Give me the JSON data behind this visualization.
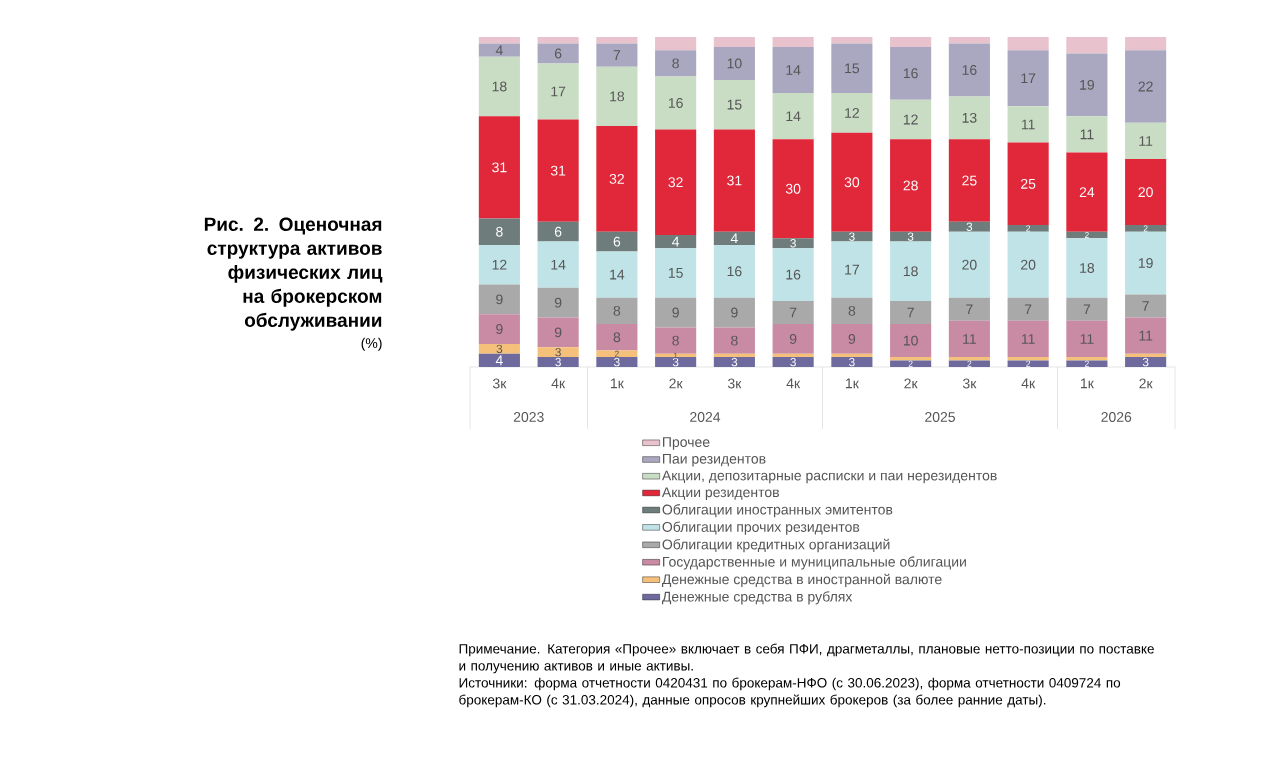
{
  "chart_data": {
    "type": "bar",
    "stacked": true,
    "title": "Рис. 2. Оценочная структура активов физических лиц на брокерском обслуживании",
    "subtitle": "(%)",
    "categories": [
      "3к",
      "4к",
      "1к",
      "2к",
      "3к",
      "4к",
      "1к",
      "2к",
      "3к",
      "4к",
      "1к",
      "2к"
    ],
    "ylim": [
      0,
      100
    ],
    "tick_labels": "x",
    "legend": "bottom",
    "series": [
      {
        "name": "Денежные средства в рублях",
        "color": "#6e6a9e",
        "values": [
          4,
          3,
          3,
          3,
          3,
          3,
          3,
          2,
          2,
          2,
          2,
          3
        ],
        "value_labels": [
          "4",
          "3",
          "3",
          "3",
          "3",
          "3",
          "3",
          "2",
          "2",
          "2",
          "2",
          "3"
        ]
      },
      {
        "name": "Денежные средства в иностранной валюте",
        "color": "#f5c07a",
        "values": [
          3,
          3,
          2,
          1,
          1,
          1,
          1,
          1,
          1,
          1,
          1,
          1
        ],
        "value_labels": [
          "3",
          "3",
          "2",
          "1",
          null,
          null,
          null,
          null,
          null,
          null,
          null,
          null
        ]
      },
      {
        "name": "Государственные и муниципальные облигации",
        "color": "#c98aa3",
        "values": [
          9,
          9,
          8,
          8,
          8,
          9,
          9,
          10,
          11,
          11,
          11,
          11
        ],
        "value_labels": [
          "9",
          "9",
          "8",
          "8",
          "8",
          "9",
          "9",
          "10",
          "11",
          "11",
          "11",
          "11"
        ]
      },
      {
        "name": "Облигации кредитных организаций",
        "color": "#a9a9a9",
        "values": [
          9,
          9,
          8,
          9,
          9,
          7,
          8,
          7,
          7,
          7,
          7,
          7
        ],
        "value_labels": [
          "9",
          "9",
          "8",
          "9",
          "9",
          "7",
          "8",
          "7",
          "7",
          "7",
          "7",
          "7"
        ]
      },
      {
        "name": "Облигации прочих резидентов",
        "color": "#bfe3e6",
        "values": [
          12,
          14,
          14,
          15,
          16,
          16,
          17,
          18,
          20,
          20,
          18,
          19
        ],
        "value_labels": [
          "12",
          "14",
          "14",
          "15",
          "16",
          "16",
          "17",
          "18",
          "20",
          "20",
          "18",
          "19"
        ]
      },
      {
        "name": "Облигации иностранных эмитентов",
        "color": "#6e7c7c",
        "values": [
          8,
          6,
          6,
          4,
          4,
          3,
          3,
          3,
          3,
          2,
          2,
          2
        ],
        "value_labels": [
          "8",
          "6",
          "6",
          "4",
          "4",
          "3",
          "3",
          "3",
          "3",
          "2",
          "2",
          "2"
        ]
      },
      {
        "name": "Акции резидентов",
        "color": "#e0283a",
        "values": [
          31,
          31,
          32,
          32,
          31,
          30,
          30,
          28,
          25,
          25,
          24,
          20
        ],
        "value_labels": [
          "31",
          "31",
          "32",
          "32",
          "31",
          "30",
          "30",
          "28",
          "25",
          "25",
          "24",
          "20"
        ]
      },
      {
        "name": "Акции, депозитарные расписки и паи нерезидентов",
        "color": "#c9dcc4",
        "values": [
          18,
          17,
          18,
          16,
          15,
          14,
          12,
          12,
          13,
          11,
          11,
          11
        ],
        "value_labels": [
          "18",
          "17",
          "18",
          "16",
          "15",
          "14",
          "12",
          "12",
          "13",
          "11",
          "11",
          "11"
        ]
      },
      {
        "name": "Паи резидентов",
        "color": "#aaa7c0",
        "values": [
          4,
          6,
          7,
          8,
          10,
          14,
          15,
          16,
          16,
          17,
          19,
          22
        ],
        "value_labels": [
          "4",
          "6",
          "7",
          "8",
          "10",
          "14",
          "15",
          "16",
          "16",
          "17",
          "19",
          "22"
        ]
      },
      {
        "name": "Прочее",
        "color": "#e8c2cc",
        "values": [
          2,
          2,
          2,
          4,
          3,
          3,
          2,
          3,
          2,
          4,
          5,
          4
        ],
        "value_labels": [
          null,
          null,
          null,
          null,
          null,
          null,
          null,
          null,
          null,
          null,
          null,
          null
        ]
      }
    ],
    "annotations": [
      "2023",
      "2024",
      "2025",
      "2026",
      "Примечание. Категория «Прочее» включает в себя ПФИ, драгметаллы, плановые нетто-позиции по поставке и получению активов и иные активы.",
      "Источники: форма отчетности 0420431 по брокерам-НФО (с 30.06.2023), форма отчетности 0409724 по брокерам-КО (с 31.03.2024), данные опросов крупнейших брокеров (за более ранние даты)."
    ]
  }
}
